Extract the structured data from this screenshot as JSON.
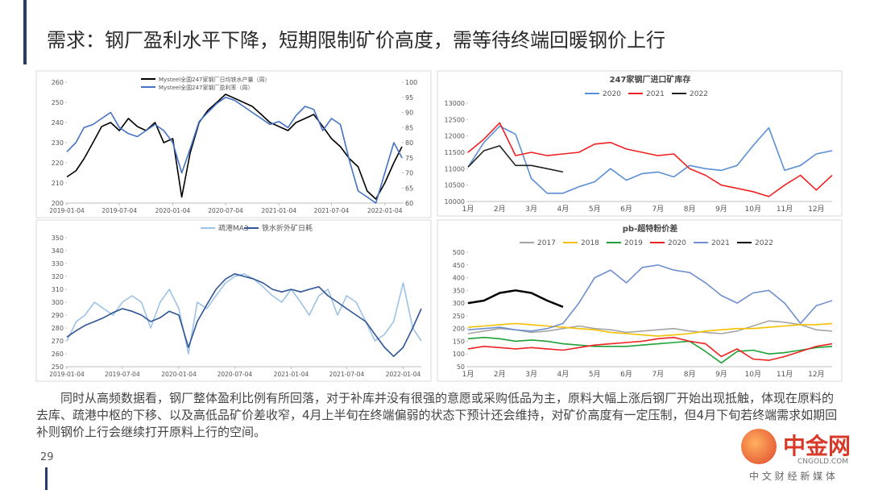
{
  "title": "需求：钢厂盈利水平下降，短期限制矿价高度，需等待终端回暖钢价上行",
  "body": "同时从高频数据看，钢厂整体盈利比例有所回落，对于补库并没有很强的意愿或采购低品为主，原料大幅上涨后钢厂开始出现抵触，体现在原料的去库、疏港中枢的下移、以及高低品矿价差收窄，4月上半旬在终端偏弱的状态下预计还会维持，对矿价高度有一定压制，但4月下旬若终端需求如期回补则钢价上行会继续打开原料上行的空间。",
  "page_number": "29",
  "watermark": {
    "name": "中金网",
    "domain": "CNGOLD.COM",
    "slogan": "中 文 财 经 新 媒 体"
  },
  "chart_data": [
    {
      "type": "line",
      "x": [
        "2019-01-04",
        "2019-02-04",
        "2019-03-04",
        "2019-04-04",
        "2019-05-04",
        "2019-06-04",
        "2019-07-04",
        "2019-08-04",
        "2019-09-04",
        "2019-10-04",
        "2019-11-04",
        "2019-12-04",
        "2020-01-04",
        "2020-02-04",
        "2020-03-04",
        "2020-04-04",
        "2020-05-04",
        "2020-06-04",
        "2020-07-04",
        "2020-08-04",
        "2020-09-04",
        "2020-10-04",
        "2020-11-04",
        "2020-12-04",
        "2021-01-04",
        "2021-02-04",
        "2021-03-04",
        "2021-04-04",
        "2021-05-04",
        "2021-06-04",
        "2021-07-04",
        "2021-08-04",
        "2021-09-04",
        "2021-10-04",
        "2021-11-04",
        "2021-12-04",
        "2022-01-04",
        "2022-02-04",
        "2022-03-04"
      ],
      "xlim": [
        "2019-01-04",
        "2022-03-04"
      ],
      "xticks": [
        "2019-01-04",
        "2019-07-04",
        "2020-01-04",
        "2020-07-04",
        "2021-01-04",
        "2021-07-04",
        "2022-01-04"
      ],
      "ylim": [
        200,
        260
      ],
      "yticks": [
        200,
        210,
        220,
        230,
        240,
        250,
        260
      ],
      "y2lim": [
        60,
        100
      ],
      "y2ticks": [
        60,
        65,
        70,
        75,
        80,
        85,
        90,
        95,
        100
      ],
      "series": [
        {
          "name": "Mysteel全国247家钢厂日均铁水产量（周）",
          "color": "#000000",
          "values": [
            213,
            216,
            222,
            230,
            238,
            240,
            236,
            242,
            238,
            236,
            240,
            230,
            232,
            203,
            225,
            240,
            246,
            250,
            254,
            252,
            250,
            248,
            244,
            240,
            238,
            236,
            240,
            242,
            244,
            238,
            232,
            228,
            222,
            218,
            206,
            202,
            210,
            220,
            228
          ]
        },
        {
          "name": "Mysteel全国247家钢厂盈利率（周）",
          "color": "#4472c4",
          "axis": "y2",
          "values": [
            77,
            80,
            85,
            86,
            88,
            90,
            85,
            83,
            82,
            84,
            86,
            84,
            80,
            70,
            78,
            87,
            90,
            93,
            95,
            94,
            92,
            90,
            88,
            86,
            87,
            85,
            89,
            92,
            91,
            84,
            88,
            86,
            74,
            64,
            62,
            60,
            70,
            80,
            75
          ]
        }
      ]
    },
    {
      "type": "line",
      "title": "247家钢厂进口矿库存",
      "categories": [
        "1月",
        null,
        "2月",
        null,
        "3月",
        null,
        "4月",
        null,
        "5月",
        null,
        "6月",
        null,
        "7月",
        null,
        "8月",
        null,
        "9月",
        null,
        "10月",
        null,
        "11月",
        null,
        "12月",
        null
      ],
      "ylim": [
        10000,
        13000
      ],
      "yticks": [
        10000,
        10500,
        11000,
        11500,
        12000,
        12500,
        13000
      ],
      "series": [
        {
          "name": "2020",
          "color": "#5b8fd6",
          "values": [
            11050,
            11800,
            12300,
            12050,
            10700,
            10250,
            10250,
            10450,
            10600,
            11000,
            10650,
            10850,
            10900,
            10750,
            11100,
            11000,
            10950,
            11100,
            11700,
            12250,
            10950,
            11100,
            11450,
            11550
          ]
        },
        {
          "name": "2021",
          "color": "#ee2222",
          "values": [
            11500,
            11900,
            12400,
            11400,
            11500,
            11400,
            11450,
            11500,
            11750,
            11800,
            11600,
            11500,
            11400,
            11450,
            11000,
            10800,
            10500,
            10400,
            10300,
            10150,
            10500,
            10800,
            10350,
            10800
          ]
        },
        {
          "name": "2022",
          "color": "#222222",
          "values": [
            11050,
            11550,
            11700,
            11100,
            11100,
            11000,
            10900,
            null,
            null,
            null,
            null,
            null,
            null,
            null,
            null,
            null,
            null,
            null,
            null,
            null,
            null,
            null,
            null,
            null
          ]
        }
      ]
    },
    {
      "type": "line",
      "x": [
        "2019-01-04",
        "2019-02-04",
        "2019-03-04",
        "2019-04-04",
        "2019-05-04",
        "2019-06-04",
        "2019-07-04",
        "2019-08-04",
        "2019-09-04",
        "2019-10-04",
        "2019-11-04",
        "2019-12-04",
        "2020-01-04",
        "2020-02-04",
        "2020-03-04",
        "2020-04-04",
        "2020-05-04",
        "2020-06-04",
        "2020-07-04",
        "2020-08-04",
        "2020-09-04",
        "2020-10-04",
        "2020-11-04",
        "2020-12-04",
        "2021-01-04",
        "2021-02-04",
        "2021-03-04",
        "2021-04-04",
        "2021-05-04",
        "2021-06-04",
        "2021-07-04",
        "2021-08-04",
        "2021-09-04",
        "2021-10-04",
        "2021-11-04",
        "2021-12-04",
        "2022-01-04",
        "2022-02-04",
        "2022-03-04"
      ],
      "xlim": [
        "2019-01-04",
        "2022-03-04"
      ],
      "xticks": [
        "2019-01-04",
        "2019-07-04",
        "2020-01-04",
        "2020-07-04",
        "2021-01-04",
        "2021-07-04",
        "2022-01-04"
      ],
      "ylim": [
        250,
        350
      ],
      "yticks": [
        250,
        260,
        270,
        280,
        290,
        300,
        310,
        320,
        330,
        340,
        350
      ],
      "series": [
        {
          "name": "疏港MA3",
          "color": "#9dc3e6",
          "values": [
            270,
            285,
            290,
            300,
            295,
            290,
            300,
            305,
            300,
            280,
            300,
            310,
            295,
            260,
            300,
            295,
            305,
            315,
            320,
            322,
            318,
            312,
            305,
            300,
            310,
            300,
            290,
            305,
            310,
            290,
            305,
            300,
            285,
            270,
            275,
            285,
            315,
            280,
            270
          ]
        },
        {
          "name": "铁水折外矿日耗",
          "color": "#2f5597",
          "values": [
            273,
            278,
            282,
            285,
            288,
            292,
            295,
            293,
            290,
            285,
            288,
            293,
            290,
            265,
            285,
            298,
            310,
            318,
            322,
            320,
            318,
            315,
            310,
            308,
            310,
            308,
            310,
            312,
            305,
            300,
            295,
            290,
            285,
            275,
            265,
            258,
            265,
            280,
            295
          ]
        }
      ]
    },
    {
      "type": "line",
      "title": "pb-超特粉价差",
      "categories": [
        "1月",
        null,
        "2月",
        null,
        "3月",
        null,
        "4月",
        null,
        "5月",
        null,
        "6月",
        null,
        "7月",
        null,
        "8月",
        null,
        "9月",
        null,
        "10月",
        null,
        "11月",
        null,
        "12月",
        null
      ],
      "ylim": [
        50,
        500
      ],
      "yticks": [
        50,
        100,
        150,
        200,
        250,
        300,
        350,
        400,
        450,
        500
      ],
      "series": [
        {
          "name": "2017",
          "color": "#a5a5a5",
          "values": [
            180,
            190,
            200,
            195,
            185,
            190,
            200,
            210,
            200,
            195,
            185,
            190,
            195,
            200,
            190,
            185,
            180,
            190,
            210,
            230,
            225,
            215,
            195,
            190
          ]
        },
        {
          "name": "2018",
          "color": "#f5c000",
          "values": [
            205,
            210,
            215,
            220,
            215,
            210,
            205,
            200,
            195,
            185,
            180,
            175,
            170,
            175,
            180,
            190,
            195,
            200,
            200,
            205,
            210,
            215,
            215,
            220
          ]
        },
        {
          "name": "2019",
          "color": "#21a038",
          "values": [
            160,
            165,
            160,
            150,
            155,
            150,
            140,
            135,
            130,
            130,
            130,
            135,
            140,
            145,
            150,
            110,
            65,
            110,
            115,
            100,
            105,
            115,
            125,
            130
          ]
        },
        {
          "name": "2020",
          "color": "#ee2222",
          "values": [
            120,
            130,
            125,
            120,
            125,
            120,
            115,
            125,
            135,
            140,
            145,
            150,
            160,
            165,
            150,
            140,
            90,
            120,
            80,
            75,
            90,
            110,
            130,
            140
          ]
        },
        {
          "name": "2021",
          "color": "#6f8fcf",
          "values": [
            195,
            200,
            205,
            195,
            190,
            200,
            220,
            300,
            400,
            430,
            380,
            440,
            450,
            430,
            420,
            380,
            330,
            300,
            340,
            350,
            300,
            220,
            290,
            310
          ]
        },
        {
          "name": "2022",
          "color": "#000000",
          "values": [
            300,
            310,
            340,
            350,
            340,
            310,
            285,
            null,
            null,
            null,
            null,
            null,
            null,
            null,
            null,
            null,
            null,
            null,
            null,
            null,
            null,
            null,
            null,
            null
          ]
        }
      ]
    }
  ]
}
